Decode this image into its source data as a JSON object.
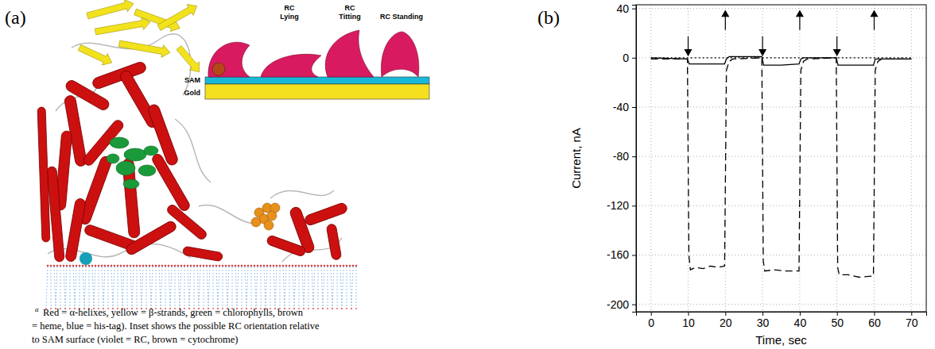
{
  "panel_a": {
    "label": "(a)",
    "caption_marker": "a",
    "caption_lines": [
      "Red = α-helixes, yellow = β-strands, green = chlorophylls, brown",
      "= heme, blue = his-tag). Inset shows the possible RC orientation relative",
      "to SAM surface (violet = RC, brown = cytochrome)"
    ],
    "inset": {
      "layers": [
        "SAM",
        "Gold"
      ],
      "orientations": [
        [
          "RC",
          "Lying"
        ],
        [
          "RC",
          "Titting"
        ],
        [
          "RC Standing"
        ]
      ]
    }
  },
  "chart_data": {
    "type": "line",
    "panel_label": "(b)",
    "x_label": "Time, sec",
    "y_label": "Current, nA",
    "xlim": [
      -4,
      74
    ],
    "ylim": [
      -206,
      43
    ],
    "xticks": [
      0,
      10,
      20,
      30,
      40,
      50,
      60,
      70
    ],
    "yticks": [
      40,
      0,
      -40,
      -80,
      -120,
      -160,
      -200
    ],
    "grid": true,
    "series": [
      {
        "type": "line",
        "line_style": "dashed",
        "color": "#000000",
        "x": [
          0,
          9.8,
          10.2,
          10.6,
          12,
          14,
          16,
          18,
          19.8,
          20.3,
          21,
          22,
          29.8,
          30.2,
          30.6,
          33,
          36,
          39.8,
          40.3,
          41,
          42,
          49.8,
          50.2,
          50.6,
          53,
          56,
          59.8,
          60.3,
          61,
          62,
          70
        ],
        "values": [
          -1,
          -1,
          -160,
          -172,
          -170,
          -171,
          -169,
          -170,
          -169,
          -10,
          -3,
          -1,
          0,
          -165,
          -173,
          -172,
          -173,
          -173,
          -10,
          -3,
          -1,
          0,
          -170,
          -176,
          -176,
          -178,
          -177,
          -10,
          -3,
          -1,
          -1
        ]
      },
      {
        "type": "line",
        "line_style": "solid",
        "color": "#000000",
        "x": [
          0,
          9.8,
          10.3,
          15,
          19.8,
          20.3,
          21,
          29.8,
          30.3,
          35,
          39.8,
          40.3,
          41,
          49.8,
          50.3,
          55,
          59.8,
          60.3,
          61,
          70
        ],
        "values": [
          0,
          -1,
          -5,
          -5,
          -5,
          -1,
          1,
          1,
          -6,
          -6,
          -5,
          -1,
          0,
          0,
          -6,
          -6,
          -6,
          -1,
          -1,
          -1
        ]
      },
      {
        "type": "line",
        "line_style": "dotted",
        "color": "#000000",
        "x": [
          0,
          70
        ],
        "values": [
          0,
          0
        ]
      },
      {
        "type": "scatter",
        "marker": "arrow-down",
        "color": "#000000",
        "x": [
          10,
          30,
          50
        ],
        "values": [
          2,
          2,
          2
        ]
      },
      {
        "type": "scatter",
        "marker": "arrow-up",
        "color": "#000000",
        "x": [
          20,
          40,
          60
        ],
        "values": [
          38,
          38,
          38
        ]
      }
    ]
  }
}
